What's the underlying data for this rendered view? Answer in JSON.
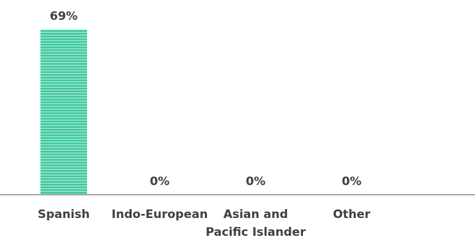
{
  "chart_data": {
    "type": "bar",
    "title": "",
    "xlabel": "",
    "ylabel": "",
    "categories": [
      "Spanish",
      "Indo-European",
      "Asian and Pacific Islander",
      "Other"
    ],
    "category_label_lines": [
      [
        "Spanish"
      ],
      [
        "Indo-European"
      ],
      [
        "Asian and",
        "Pacific Islander"
      ],
      [
        "Other"
      ]
    ],
    "values": [
      69,
      0,
      0,
      0
    ],
    "data_labels": [
      "69%",
      "0%",
      "0%",
      "0%"
    ],
    "unit": "%",
    "ylim": [
      0,
      69
    ],
    "grid": false,
    "legend": "none",
    "colors": {
      "bar_fill": "#3ec9a0",
      "bar_stripe": "#ffffff",
      "axis": "#a6a6a6",
      "text": "#404040"
    }
  }
}
